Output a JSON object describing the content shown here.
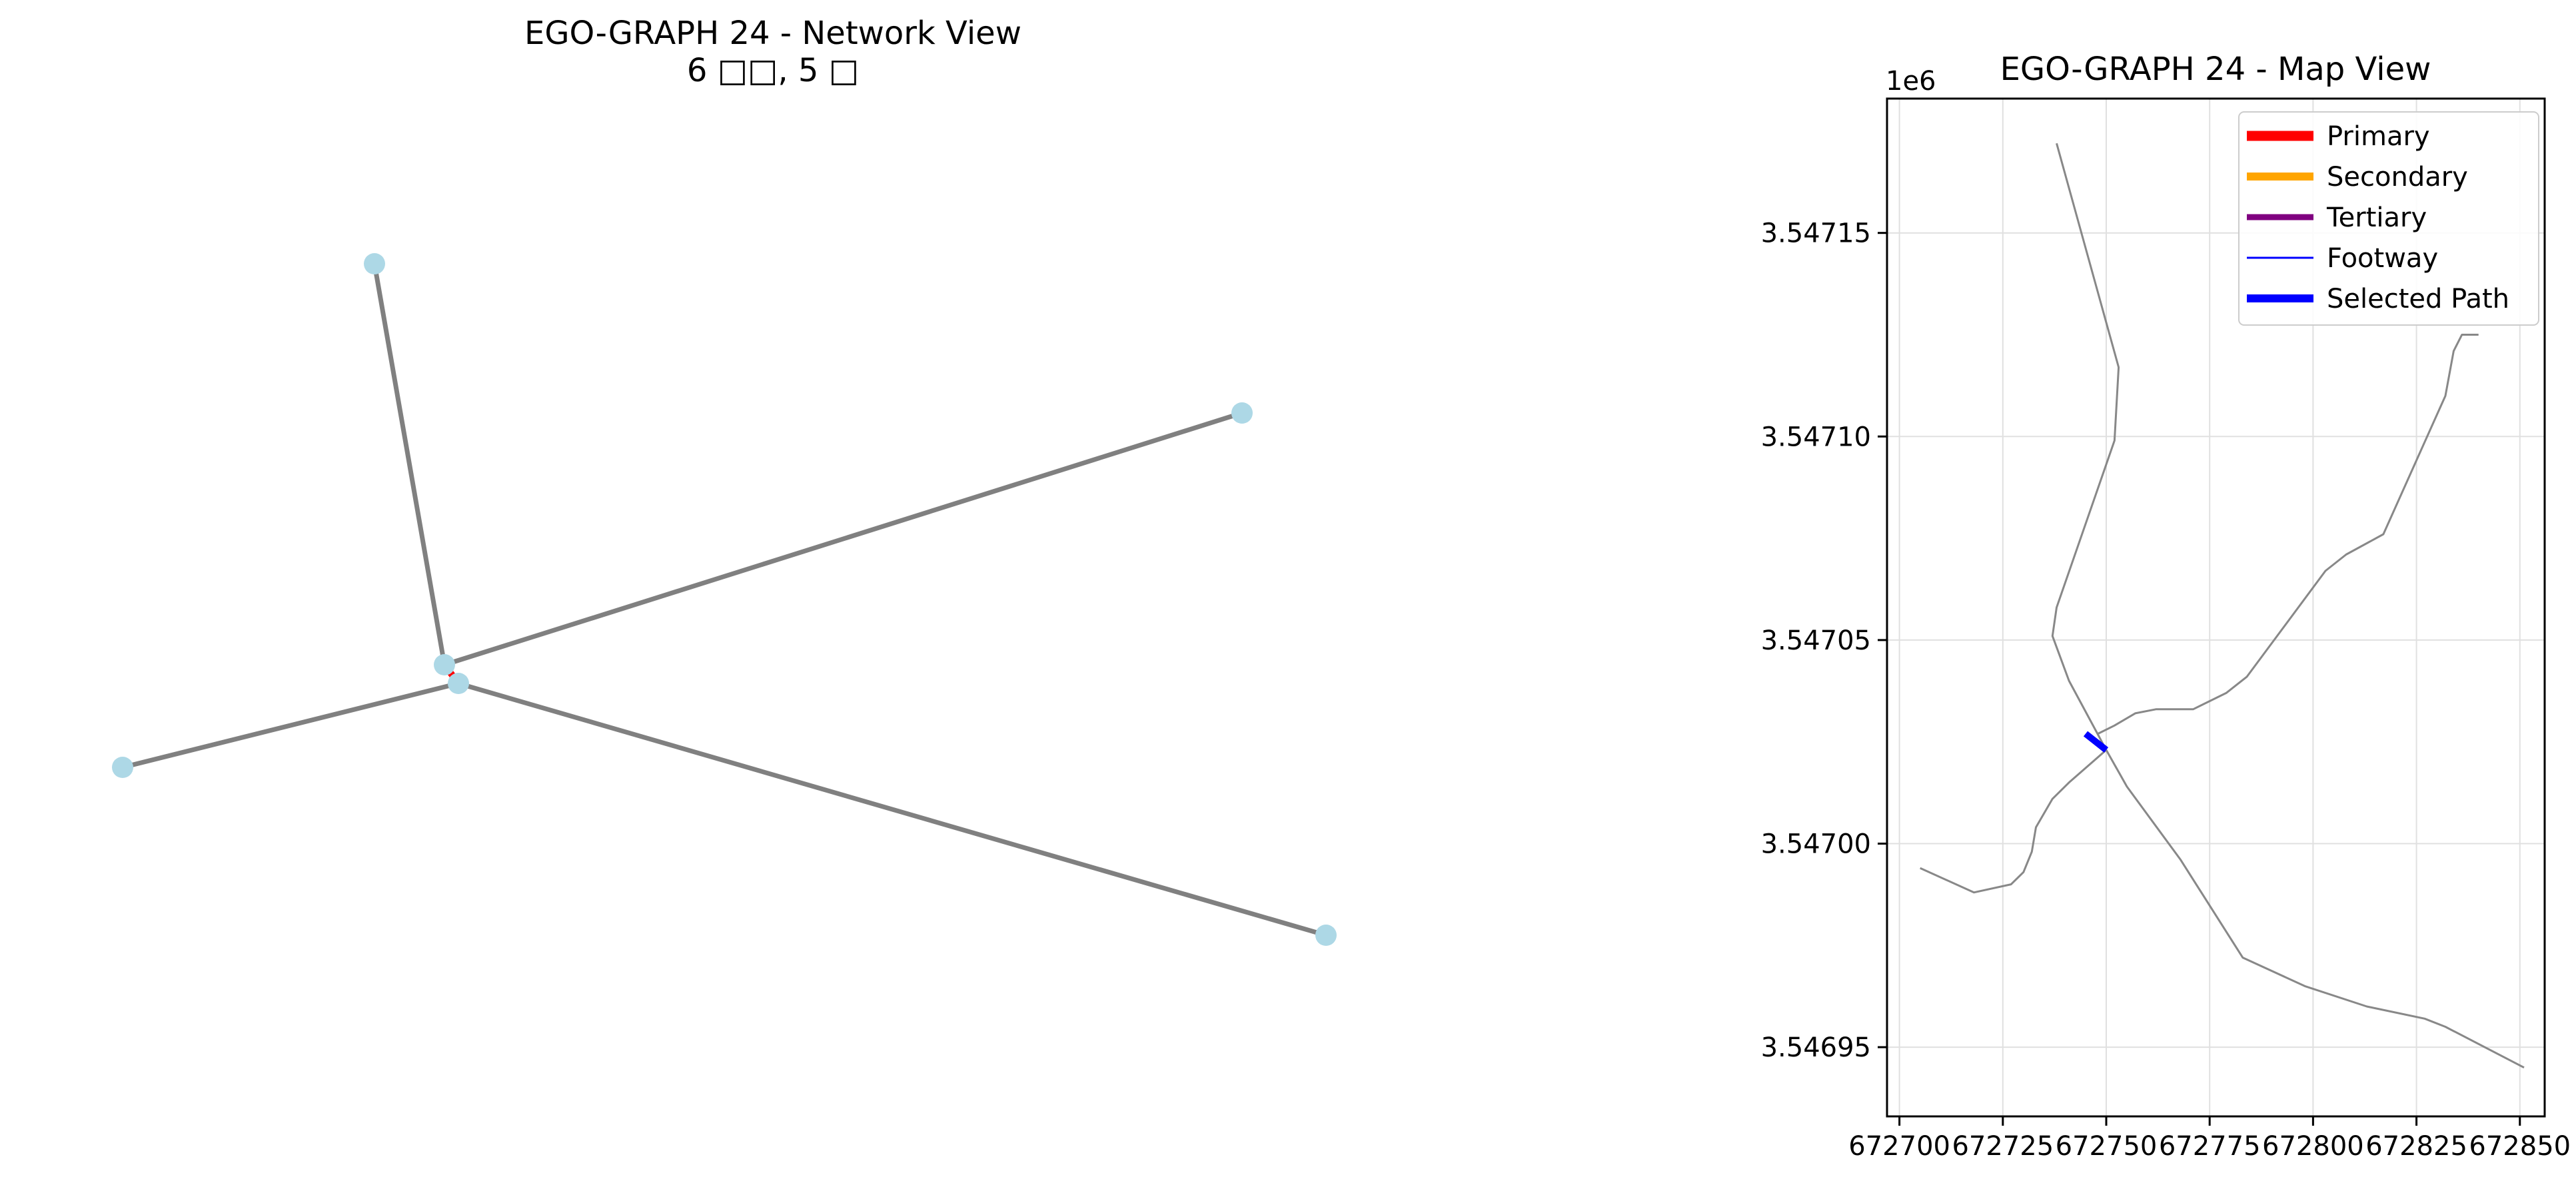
{
  "figure_title": "",
  "chart_data": [
    {
      "type": "network",
      "title": "EGO-GRAPH 24 - Network View",
      "subtitle": "6 □□, 5 □",
      "node_color": "#add8e6",
      "edge_color": "#808080",
      "highlight_color": "#ff0000",
      "nodes": [
        {
          "id": "n1",
          "x": 0.22,
          "y": 0.86
        },
        {
          "id": "n2",
          "x": 0.84,
          "y": 0.7
        },
        {
          "id": "n3",
          "x": 0.27,
          "y": 0.43
        },
        {
          "id": "n4",
          "x": 0.28,
          "y": 0.41
        },
        {
          "id": "n5",
          "x": 0.04,
          "y": 0.32
        },
        {
          "id": "n6",
          "x": 0.9,
          "y": 0.14
        }
      ],
      "edges": [
        {
          "source": "n1",
          "target": "n3",
          "highlight": false
        },
        {
          "source": "n3",
          "target": "n2",
          "highlight": false
        },
        {
          "source": "n5",
          "target": "n4",
          "highlight": false
        },
        {
          "source": "n4",
          "target": "n6",
          "highlight": false
        },
        {
          "source": "n3",
          "target": "n4",
          "highlight": true
        }
      ]
    },
    {
      "type": "line",
      "title": "EGO-GRAPH 24 - Map View",
      "x_ticks": [
        "672700",
        "672725",
        "672750",
        "672775",
        "672800",
        "672825",
        "672850"
      ],
      "y_ticks": [
        "3.54695",
        "3.54700",
        "3.54705",
        "3.54710",
        "3.54715"
      ],
      "y_offset_label": "1e6",
      "xlim": [
        672697,
        672856
      ],
      "ylim": [
        3546933,
        3547183
      ],
      "grid": true,
      "legend_position": "top-right",
      "legend": [
        {
          "label": "Primary",
          "color": "#ff0000",
          "width": 5
        },
        {
          "label": "Secondary",
          "color": "#ffa500",
          "width": 4
        },
        {
          "label": "Tertiary",
          "color": "#800080",
          "width": 3
        },
        {
          "label": "Footway",
          "color": "#0000ff",
          "width": 1
        },
        {
          "label": "Selected Path",
          "color": "#0000ff",
          "width": 4
        }
      ],
      "series": [
        {
          "style": "road",
          "color": "#888888",
          "points": [
            [
              672738,
              3547172
            ],
            [
              672753,
              3547117
            ],
            [
              672752,
              3547099
            ],
            [
              672738,
              3547058
            ],
            [
              672737,
              3547051
            ],
            [
              672741,
              3547040
            ],
            [
              672750,
              3547023
            ],
            [
              672755,
              3547014
            ],
            [
              672768,
              3546996
            ],
            [
              672783,
              3546972
            ],
            [
              672798,
              3546965
            ],
            [
              672813,
              3546960
            ],
            [
              672827,
              3546957
            ],
            [
              672832,
              3546955
            ],
            [
              672851,
              3546945
            ]
          ]
        },
        {
          "style": "road",
          "color": "#888888",
          "points": [
            [
              672705,
              3546994
            ],
            [
              672718,
              3546988
            ],
            [
              672727,
              3546990
            ],
            [
              672730,
              3546993
            ],
            [
              672732,
              3546998
            ],
            [
              672733,
              3547004
            ],
            [
              672737,
              3547011
            ],
            [
              672741,
              3547015
            ],
            [
              672750,
              3547023
            ]
          ]
        },
        {
          "style": "road",
          "color": "#888888",
          "points": [
            [
              672748,
              3547027
            ],
            [
              672752,
              3547029
            ],
            [
              672757,
              3547032
            ],
            [
              672762,
              3547033
            ],
            [
              672771,
              3547033
            ],
            [
              672779,
              3547037
            ],
            [
              672784,
              3547041
            ],
            [
              672803,
              3547067
            ],
            [
              672808,
              3547071
            ],
            [
              672817,
              3547076
            ],
            [
              672832,
              3547110
            ],
            [
              672834,
              3547121
            ],
            [
              672836,
              3547125
            ],
            [
              672840,
              3547125
            ]
          ]
        },
        {
          "style": "selected",
          "color": "#0000ff",
          "points": [
            [
              672745,
              3547027
            ],
            [
              672750,
              3547023
            ]
          ]
        }
      ]
    }
  ]
}
